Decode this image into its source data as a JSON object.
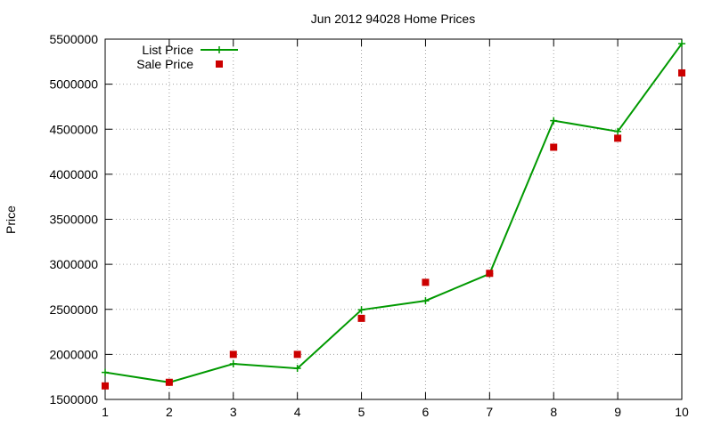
{
  "chart_data": {
    "type": "line",
    "title": "Jun 2012 94028 Home Prices",
    "xlabel": "",
    "ylabel": "Price",
    "xlim": [
      1,
      10
    ],
    "ylim": [
      1500000,
      5500000
    ],
    "x_ticks": [
      "1",
      "2",
      "3",
      "4",
      "5",
      "6",
      "7",
      "8",
      "9",
      "10"
    ],
    "y_ticks": [
      "1500000",
      "2000000",
      "2500000",
      "3000000",
      "3500000",
      "4000000",
      "4500000",
      "5000000",
      "5500000"
    ],
    "grid": true,
    "legend_position": "top-left",
    "x": [
      1,
      2,
      3,
      4,
      5,
      6,
      7,
      8,
      9,
      10
    ],
    "series": [
      {
        "name": "List Price",
        "style": "line-with-plus-markers",
        "color": "#009900",
        "values": [
          1800000,
          1690000,
          1895000,
          1845000,
          2495000,
          2595000,
          2895000,
          4595000,
          4475000,
          5450000
        ]
      },
      {
        "name": "Sale Price",
        "style": "square-points",
        "color": "#cc0000",
        "values": [
          1650000,
          1690000,
          2000000,
          2000000,
          2400000,
          2800000,
          2900000,
          4300000,
          4400000,
          5125000
        ]
      }
    ]
  }
}
